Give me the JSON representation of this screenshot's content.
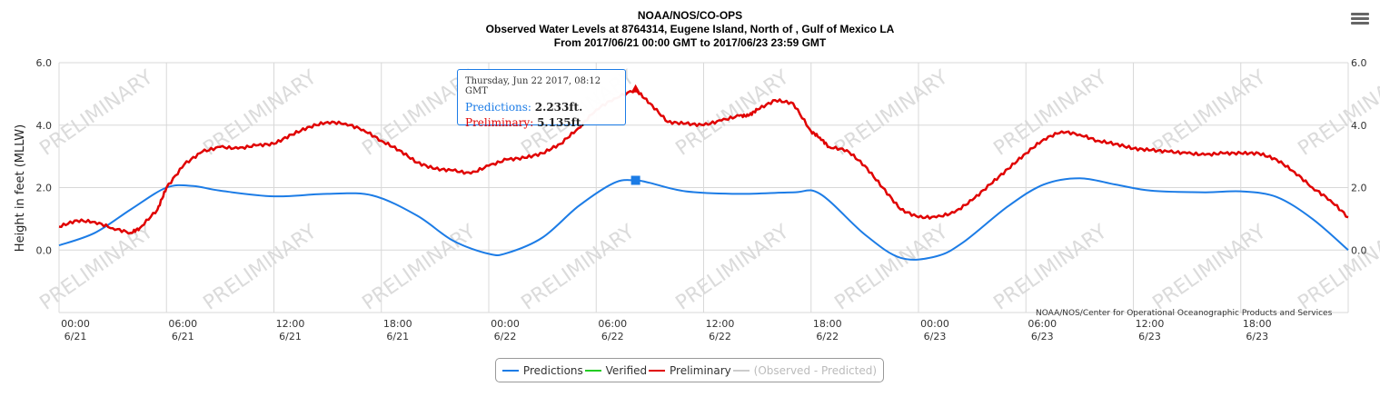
{
  "header": {
    "title_line1": "NOAA/NOS/CO-OPS",
    "title_line2": "Observed Water Levels at 8764314, Eugene Island, North of , Gulf of Mexico LA",
    "title_line3": "From 2017/06/21 00:00 GMT to 2017/06/23 23:59 GMT"
  },
  "menu": {
    "icon": "hamburger-menu-icon"
  },
  "tooltip": {
    "date": "Thursday, Jun 22 2017, 08:12 GMT",
    "pred_label": "Predictions:",
    "pred_value": "2.233ft.",
    "prelim_label": "Preliminary:",
    "prelim_value": "5.135ft."
  },
  "credit": "NOAA/NOS/Center for Operational Oceanographic Products and Services",
  "watermark": "PRELIMINARY",
  "legend": {
    "predictions": "Predictions",
    "verified": "Verified",
    "preliminary": "Preliminary",
    "observed_minus_predicted": "(Observed - Predicted)"
  },
  "colors": {
    "predictions": "#1c7ce6",
    "verified": "#22cc22",
    "preliminary": "#e00000",
    "disabled": "#cccccc",
    "grid": "#d8d8d8"
  },
  "chart_data": {
    "type": "line",
    "ylabel": "Height in feet (MLLW)",
    "ylim": [
      -2,
      6
    ],
    "yticks": [
      0,
      2,
      4,
      6
    ],
    "ytick_labels": [
      "0.0",
      "2.0",
      "4.0",
      "6.0"
    ],
    "xlim_hours": [
      0,
      72
    ],
    "xticks": [
      {
        "h": 0,
        "time": "00:00",
        "date": "6/21"
      },
      {
        "h": 6,
        "time": "06:00",
        "date": "6/21"
      },
      {
        "h": 12,
        "time": "12:00",
        "date": "6/21"
      },
      {
        "h": 18,
        "time": "18:00",
        "date": "6/21"
      },
      {
        "h": 24,
        "time": "00:00",
        "date": "6/22"
      },
      {
        "h": 30,
        "time": "06:00",
        "date": "6/22"
      },
      {
        "h": 36,
        "time": "12:00",
        "date": "6/22"
      },
      {
        "h": 42,
        "time": "18:00",
        "date": "6/22"
      },
      {
        "h": 48,
        "time": "00:00",
        "date": "6/23"
      },
      {
        "h": 54,
        "time": "06:00",
        "date": "6/23"
      },
      {
        "h": 60,
        "time": "12:00",
        "date": "6/23"
      },
      {
        "h": 66,
        "time": "18:00",
        "date": "6/23"
      }
    ],
    "series": [
      {
        "name": "Predictions",
        "x_hours": [
          0,
          2,
          4,
          6,
          7.5,
          9,
          12,
          15,
          17.5,
          20,
          22,
          24,
          25,
          27,
          29,
          31,
          32.2,
          33,
          35,
          38,
          41,
          42.5,
          45,
          47,
          49,
          50.5,
          53,
          55,
          57,
          59,
          61,
          64,
          66,
          68,
          70,
          72
        ],
        "y": [
          0.15,
          0.55,
          1.3,
          2.0,
          2.05,
          1.9,
          1.72,
          1.8,
          1.75,
          1.1,
          0.3,
          -0.12,
          -0.1,
          0.4,
          1.4,
          2.15,
          2.233,
          2.15,
          1.88,
          1.8,
          1.85,
          1.8,
          0.5,
          -0.25,
          -0.2,
          0.25,
          1.4,
          2.1,
          2.3,
          2.1,
          1.9,
          1.85,
          1.88,
          1.7,
          1.0,
          0.0
        ]
      },
      {
        "name": "Preliminary",
        "x_hours": [
          0,
          1,
          2,
          3,
          4,
          4.5,
          5.5,
          6,
          7,
          8,
          9,
          10,
          11,
          12,
          13,
          14,
          15,
          16,
          17,
          18,
          19,
          20,
          21,
          22,
          23,
          24,
          25,
          26,
          27,
          28,
          29,
          30,
          31,
          32.2,
          33,
          34,
          35,
          36,
          37,
          38,
          38.5,
          39,
          40,
          41,
          42,
          42.5,
          43,
          44,
          45,
          46,
          47,
          48,
          49,
          50,
          51,
          52,
          53,
          54,
          55,
          56,
          57,
          58,
          59,
          60,
          61,
          62,
          63,
          64,
          65,
          66,
          67,
          68,
          69,
          70,
          71,
          72
        ],
        "y": [
          0.75,
          0.95,
          0.9,
          0.7,
          0.55,
          0.7,
          1.3,
          2.0,
          2.75,
          3.15,
          3.3,
          3.25,
          3.35,
          3.4,
          3.7,
          3.95,
          4.1,
          4.05,
          3.85,
          3.5,
          3.2,
          2.8,
          2.6,
          2.55,
          2.45,
          2.7,
          2.9,
          2.95,
          3.1,
          3.4,
          3.9,
          4.5,
          4.85,
          5.135,
          4.7,
          4.1,
          4.05,
          4.0,
          4.15,
          4.3,
          4.3,
          4.5,
          4.8,
          4.7,
          3.8,
          3.6,
          3.3,
          3.2,
          2.7,
          2.0,
          1.3,
          1.05,
          1.05,
          1.2,
          1.6,
          2.1,
          2.6,
          3.1,
          3.55,
          3.8,
          3.7,
          3.5,
          3.4,
          3.25,
          3.2,
          3.15,
          3.1,
          3.05,
          3.1,
          3.1,
          3.1,
          2.9,
          2.5,
          2.0,
          1.6,
          1.05
        ]
      }
    ],
    "tooltip_x_hours": 32.2,
    "legend_position": "bottom-center"
  }
}
